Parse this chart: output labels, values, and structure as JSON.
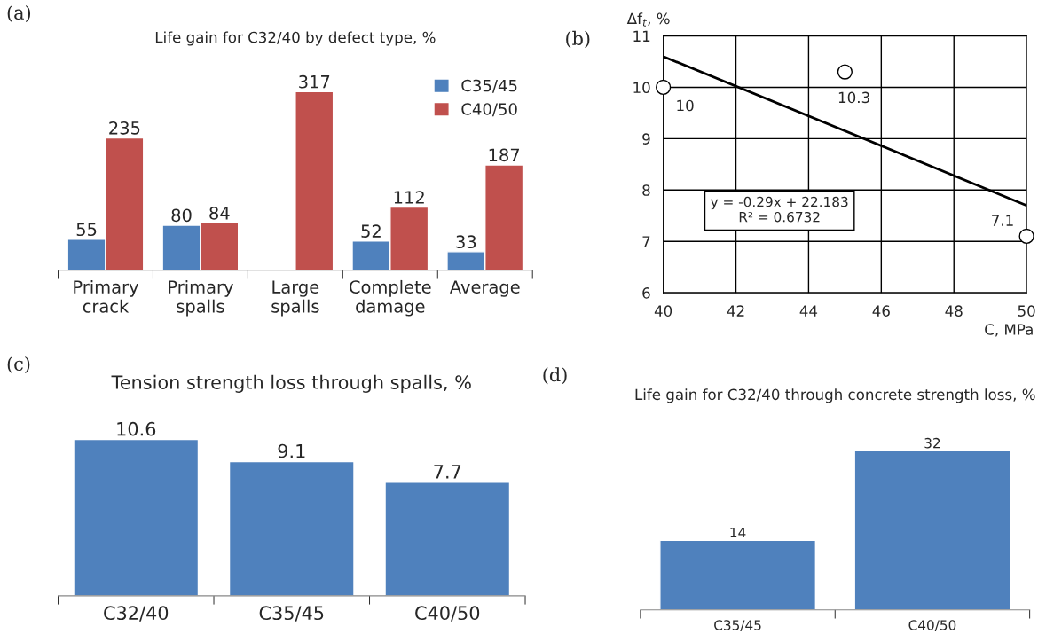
{
  "chart_data": [
    {
      "type": "bar",
      "title": "Life gain for C32/40 by defect type, %",
      "categories": [
        "Primary\ncrack",
        "Primary\nspalls",
        "Large\nspalls",
        "Complete\ndamage",
        "Average"
      ],
      "series": [
        {
          "name": "C35/45",
          "color": "#4f81bd",
          "values": [
            55,
            80,
            null,
            52,
            33
          ]
        },
        {
          "name": "C40/50",
          "color": "#c0504d",
          "values": [
            235,
            84,
            317,
            112,
            187
          ]
        }
      ],
      "data_labels": true,
      "legend": "top right",
      "grid": false,
      "annotations": [
        "(a)"
      ]
    },
    {
      "type": "scatter",
      "xlabel": "C, MPa",
      "ylabel": "Δf$_{t}$, %",
      "x": [
        40,
        45,
        50
      ],
      "series": [
        {
          "type": "scatter",
          "color": "#ffffff",
          "values": [
            10,
            10.3,
            7.1
          ],
          "value_labels": [
            "10",
            "10.3",
            "7.1"
          ],
          "marker": "circle"
        },
        {
          "type": "line",
          "x": [
            40,
            50
          ],
          "color": "#000000",
          "values": [
            10.6,
            7.7
          ]
        }
      ],
      "xlim": [
        40,
        50
      ],
      "xticks": [
        40,
        42,
        44,
        46,
        48,
        50
      ],
      "ylim": [
        6,
        11
      ],
      "yticks": [
        6,
        7,
        8,
        9,
        10,
        11
      ],
      "grid": true,
      "line_style": "solid",
      "annotations": [
        "(b)",
        "y = -0.29x + 22.183\nR² = 0.6732"
      ]
    },
    {
      "type": "bar",
      "title": "Tension strength loss through spalls, %",
      "categories": [
        "C32/40",
        "C35/45",
        "C40/50"
      ],
      "values": [
        10.6,
        9.1,
        7.7
      ],
      "color": "#4f81bd",
      "data_labels": true,
      "grid": false,
      "annotations": [
        "(c)"
      ]
    },
    {
      "type": "bar",
      "title": "Life gain for C32/40 through concrete strength loss, %",
      "categories": [
        "C35/45",
        "C40/50"
      ],
      "values": [
        14,
        32
      ],
      "color": "#4f81bd",
      "data_labels": true,
      "grid": false,
      "annotations": [
        "(d)"
      ]
    }
  ]
}
